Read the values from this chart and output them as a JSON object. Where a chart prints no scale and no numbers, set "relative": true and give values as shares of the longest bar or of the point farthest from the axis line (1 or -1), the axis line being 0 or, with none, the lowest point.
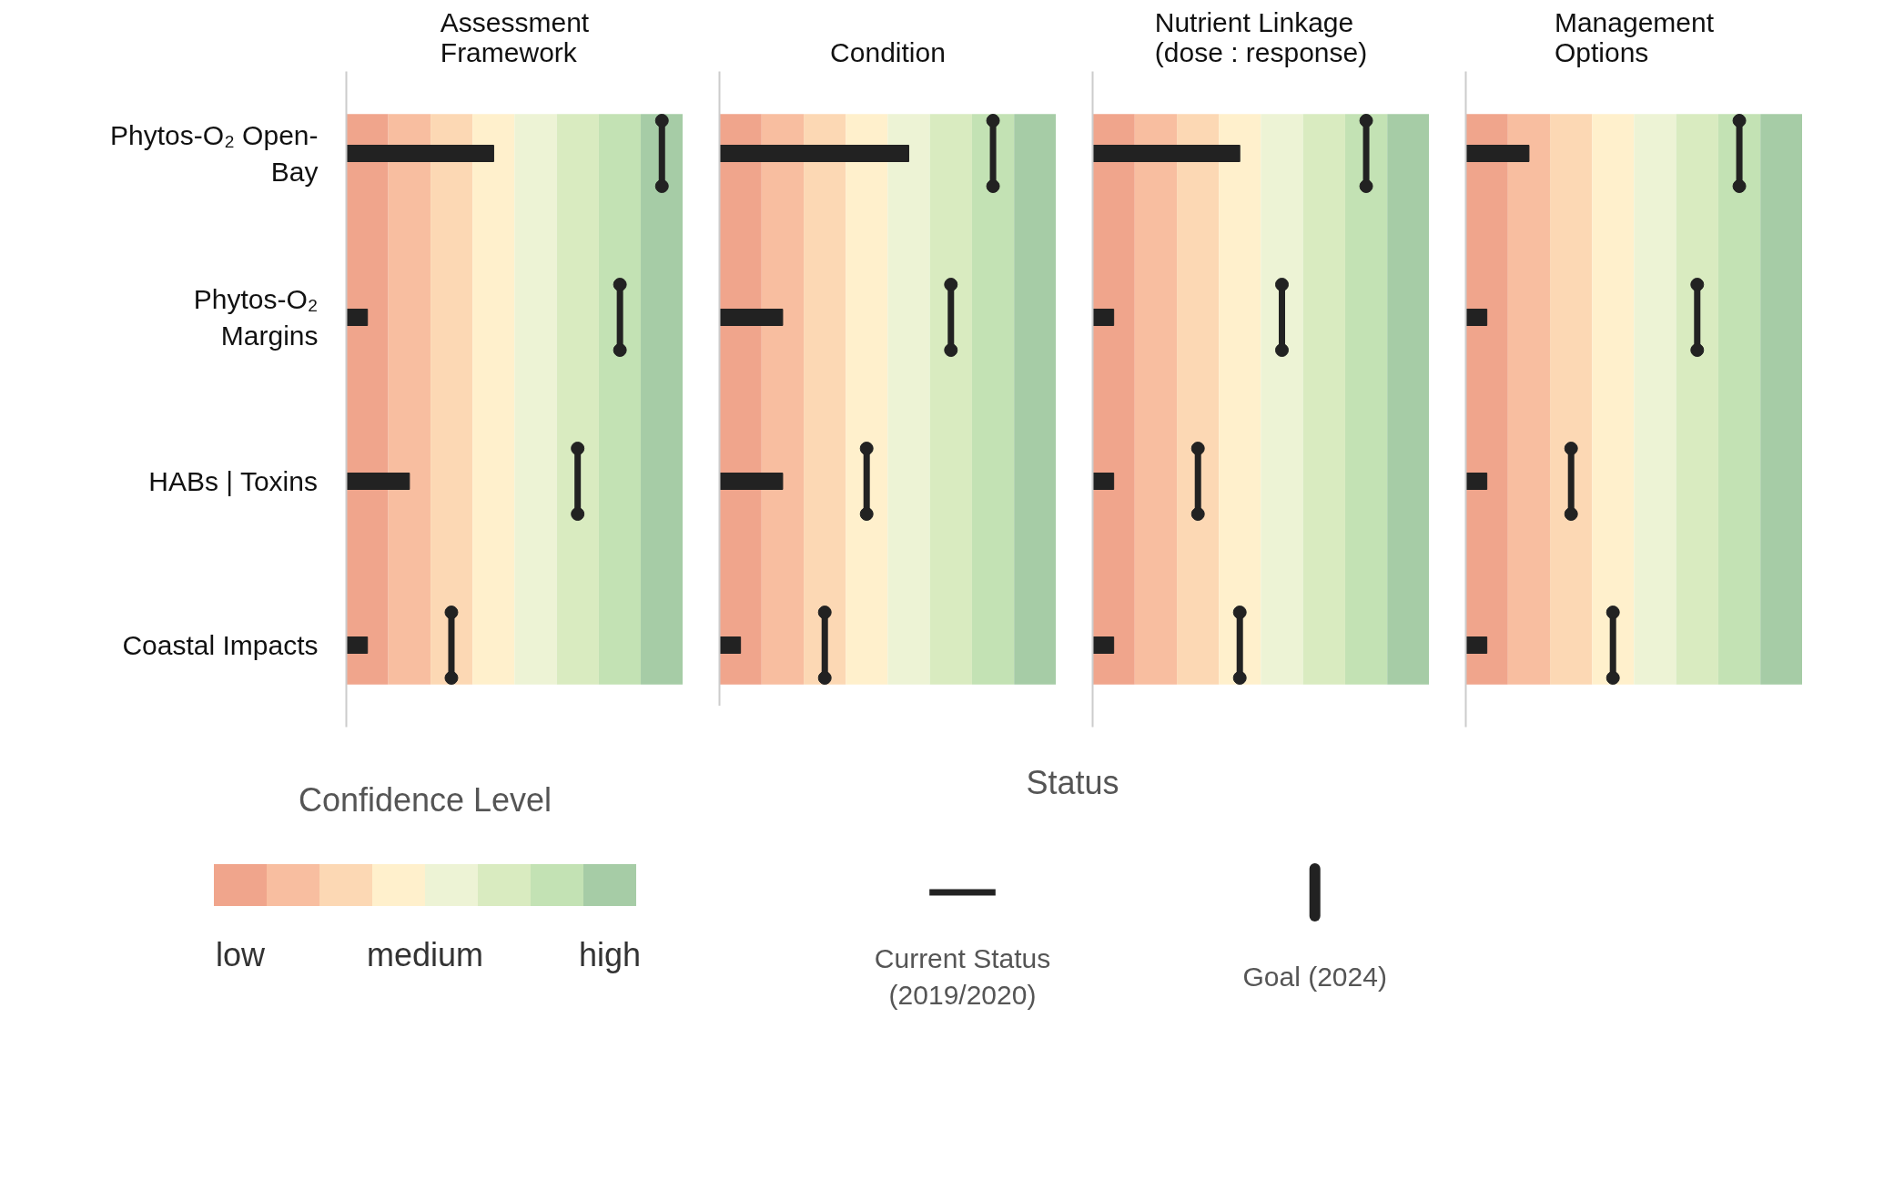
{
  "chart_data": [
    {
      "type": "bar",
      "orientation": "horizontal",
      "relative": true,
      "title": "Assessment Framework",
      "categories": [
        "Phytos-O₂ Open-Bay",
        "Phytos-O₂ Margins",
        "HABs | Toxins",
        "Coastal Impacts"
      ],
      "tick_labels": "y",
      "legend": "bottom",
      "legend_title": "Status",
      "bands": [
        {
          "axis": "x",
          "from": 0,
          "to": 0.133,
          "color": "#f0a58c"
        },
        {
          "axis": "x",
          "from": 0.133,
          "to": 0.267,
          "color": "#f8bea0"
        },
        {
          "axis": "x",
          "from": 0.267,
          "to": 0.4,
          "color": "#fcd8b4"
        },
        {
          "axis": "x",
          "from": 0.4,
          "to": 0.533,
          "color": "#fff0cc"
        },
        {
          "axis": "x",
          "from": 0.533,
          "to": 0.667,
          "color": "#edf3d5"
        },
        {
          "axis": "x",
          "from": 0.667,
          "to": 0.8,
          "color": "#d9ebc0"
        },
        {
          "axis": "x",
          "from": 0.8,
          "to": 0.933,
          "color": "#c3e2b4"
        },
        {
          "axis": "x",
          "from": 0.933,
          "to": 1.067,
          "color": "#a6cca6"
        }
      ],
      "series": [
        {
          "name": "Current Status (2019/2020)",
          "color": "#222222",
          "values": [
            0.467,
            0.067,
            0.2,
            0.067
          ]
        },
        {
          "name": "Goal (2024)",
          "type": "scatter",
          "color": "#222222",
          "values": [
            1,
            0.867,
            0.733,
            0.333
          ]
        }
      ]
    },
    {
      "type": "bar",
      "orientation": "horizontal",
      "relative": true,
      "title": "Condition",
      "categories": [
        "Phytos-O₂ Open-Bay",
        "Phytos-O₂ Margins",
        "HABs | Toxins",
        "Coastal Impacts"
      ],
      "tick_labels": false,
      "bands": [
        {
          "axis": "x",
          "from": 0,
          "to": 0.154,
          "color": "#f0a58c"
        },
        {
          "axis": "x",
          "from": 0.154,
          "to": 0.308,
          "color": "#f8bea0"
        },
        {
          "axis": "x",
          "from": 0.308,
          "to": 0.462,
          "color": "#fcd8b4"
        },
        {
          "axis": "x",
          "from": 0.462,
          "to": 0.615,
          "color": "#fff0cc"
        },
        {
          "axis": "x",
          "from": 0.615,
          "to": 0.769,
          "color": "#edf3d5"
        },
        {
          "axis": "x",
          "from": 0.769,
          "to": 0.923,
          "color": "#d9ebc0"
        },
        {
          "axis": "x",
          "from": 0.923,
          "to": 1.077,
          "color": "#c3e2b4"
        },
        {
          "axis": "x",
          "from": 1.077,
          "to": 1.231,
          "color": "#a6cca6"
        }
      ],
      "series": [
        {
          "color": "#222222",
          "values": [
            0.692,
            0.231,
            0.231,
            0.077
          ]
        },
        {
          "type": "scatter",
          "color": "#222222",
          "values": [
            1,
            0.846,
            0.538,
            0.385
          ]
        }
      ]
    },
    {
      "type": "bar",
      "orientation": "horizontal",
      "relative": true,
      "title": "Nutrient Linkage (dose : response)",
      "categories": [
        "Phytos-O₂ Open-Bay",
        "Phytos-O₂ Margins",
        "HABs | Toxins",
        "Coastal Impacts"
      ],
      "tick_labels": false,
      "bands": [
        {
          "axis": "x",
          "from": 0,
          "to": 0.154,
          "color": "#f0a58c"
        },
        {
          "axis": "x",
          "from": 0.154,
          "to": 0.308,
          "color": "#f8bea0"
        },
        {
          "axis": "x",
          "from": 0.308,
          "to": 0.462,
          "color": "#fcd8b4"
        },
        {
          "axis": "x",
          "from": 0.462,
          "to": 0.615,
          "color": "#fff0cc"
        },
        {
          "axis": "x",
          "from": 0.615,
          "to": 0.769,
          "color": "#edf3d5"
        },
        {
          "axis": "x",
          "from": 0.769,
          "to": 0.923,
          "color": "#d9ebc0"
        },
        {
          "axis": "x",
          "from": 0.923,
          "to": 1.077,
          "color": "#c3e2b4"
        },
        {
          "axis": "x",
          "from": 1.077,
          "to": 1.231,
          "color": "#a6cca6"
        }
      ],
      "series": [
        {
          "color": "#222222",
          "values": [
            0.538,
            0.077,
            0.077,
            0.077
          ]
        },
        {
          "type": "scatter",
          "color": "#222222",
          "values": [
            1,
            0.692,
            0.385,
            0.538
          ]
        }
      ]
    },
    {
      "type": "bar",
      "orientation": "horizontal",
      "relative": true,
      "title": "Management Options",
      "categories": [
        "Phytos-O₂ Open-Bay",
        "Phytos-O₂ Margins",
        "HABs | Toxins",
        "Coastal Impacts"
      ],
      "tick_labels": false,
      "bands": [
        {
          "axis": "x",
          "from": 0,
          "to": 0.154,
          "color": "#f0a58c"
        },
        {
          "axis": "x",
          "from": 0.154,
          "to": 0.308,
          "color": "#f8bea0"
        },
        {
          "axis": "x",
          "from": 0.308,
          "to": 0.462,
          "color": "#fcd8b4"
        },
        {
          "axis": "x",
          "from": 0.462,
          "to": 0.615,
          "color": "#fff0cc"
        },
        {
          "axis": "x",
          "from": 0.615,
          "to": 0.769,
          "color": "#edf3d5"
        },
        {
          "axis": "x",
          "from": 0.769,
          "to": 0.923,
          "color": "#d9ebc0"
        },
        {
          "axis": "x",
          "from": 0.923,
          "to": 1.077,
          "color": "#c3e2b4"
        },
        {
          "axis": "x",
          "from": 1.077,
          "to": 1.231,
          "color": "#a6cca6"
        }
      ],
      "series": [
        {
          "color": "#222222",
          "values": [
            0.231,
            0.077,
            0.077,
            0.077
          ]
        },
        {
          "type": "scatter",
          "color": "#222222",
          "values": [
            1,
            0.846,
            0.385,
            0.538
          ]
        }
      ]
    },
    {
      "type": "other",
      "title": "Confidence Level",
      "colors": [
        "#f0a58c",
        "#f8bea0",
        "#fcd8b4",
        "#fff0cc",
        "#edf3d5",
        "#d9ebc0",
        "#c3e2b4",
        "#a6cca6"
      ],
      "annotations": [
        "low",
        "medium",
        "high"
      ]
    }
  ]
}
